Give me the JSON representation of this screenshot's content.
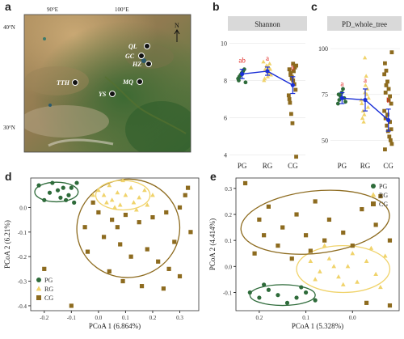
{
  "panels": {
    "a": {
      "letter": "a",
      "lon_labels": [
        "90°E",
        "100°E"
      ],
      "lat_labels": [
        "40°N",
        "30°N"
      ],
      "north": "N",
      "sites": [
        {
          "label": "QL"
        },
        {
          "label": "GC"
        },
        {
          "label": "HZ"
        },
        {
          "label": "TTH"
        },
        {
          "label": "MQ"
        },
        {
          "label": "YS"
        }
      ]
    },
    "b": {
      "letter": "b",
      "strip": "Shannon"
    },
    "c": {
      "letter": "c",
      "strip": "PD_whole_tree"
    },
    "d": {
      "letter": "d"
    },
    "e": {
      "letter": "e"
    }
  },
  "colors": {
    "PG": "#2e6b3a",
    "RG": "#f0d36b",
    "CG": "#8d6b1f",
    "mean": "#1a2fd6",
    "sig": "#e0221d",
    "strip": "#d9d9d9"
  },
  "chart_data": [
    {
      "panel": "b",
      "type": "scatter",
      "title": "Shannon",
      "categories": [
        "PG",
        "RG",
        "CG"
      ],
      "ylim": [
        3.8,
        10.5
      ],
      "yticks": [
        4,
        6,
        8,
        10
      ],
      "means": [
        8.35,
        8.5,
        7.75
      ],
      "errors": [
        0.25,
        0.22,
        0.45
      ],
      "sig_letters": [
        "ab",
        "a",
        "b"
      ],
      "points": {
        "PG": [
          8.1,
          8.2,
          8.3,
          8.4,
          8.5,
          8.6,
          7.9,
          8.0
        ],
        "RG": [
          8.5,
          8.7,
          8.9,
          8.3,
          8.0,
          8.6,
          8.8,
          8.2,
          8.4,
          8.6,
          9.0,
          8.1
        ],
        "CG": [
          8.8,
          8.6,
          8.4,
          8.2,
          8.0,
          7.8,
          7.5,
          7.2,
          6.8,
          6.2,
          5.7,
          8.5,
          8.7,
          3.9,
          7.0,
          8.3,
          8.1,
          8.9
        ]
      }
    },
    {
      "panel": "c",
      "type": "scatter",
      "title": "PD_whole_tree",
      "categories": [
        "PG",
        "RG",
        "CG"
      ],
      "ylim": [
        40,
        108
      ],
      "yticks": [
        50,
        75,
        100
      ],
      "means": [
        73,
        72,
        61
      ],
      "errors": [
        3,
        6,
        6
      ],
      "sig_letters": [
        "a",
        "a",
        "b"
      ],
      "points": {
        "PG": [
          70,
          72,
          74,
          76,
          78,
          73,
          71,
          75
        ],
        "RG": [
          95,
          85,
          78,
          73,
          70,
          66,
          64,
          80,
          75,
          68,
          72,
          62,
          60,
          76
        ],
        "CG": [
          98,
          92,
          88,
          82,
          78,
          74,
          70,
          66,
          62,
          58,
          55,
          52,
          50,
          48,
          45,
          80,
          64,
          72,
          60,
          56,
          86,
          76
        ]
      }
    },
    {
      "panel": "d",
      "type": "scatter",
      "xlabel": "PCoA 1 (6.864%)",
      "ylabel": "PCoA 2 (6.21%)",
      "xlim": [
        -0.25,
        0.37
      ],
      "ylim": [
        -0.42,
        0.12
      ],
      "xticks": [
        -0.2,
        -0.1,
        0.0,
        0.1,
        0.2,
        0.3
      ],
      "xtick_labels": [
        "-0.2",
        "-0.1",
        "0.0",
        "0.1",
        "0.2",
        "0.3"
      ],
      "yticks": [
        0.0,
        -0.1,
        -0.2,
        -0.3,
        -0.4
      ],
      "ytick_labels": [
        "0.0",
        "-0.1",
        "-0.2",
        "-0.3",
        "-0.4"
      ],
      "legend": [
        "PG",
        "RG",
        "CG"
      ],
      "legend_position": "bottom-left",
      "points": {
        "PG": [
          [
            -0.22,
            0.09
          ],
          [
            -0.2,
            0.03
          ],
          [
            -0.18,
            0.06
          ],
          [
            -0.17,
            0.1
          ],
          [
            -0.14,
            0.04
          ],
          [
            -0.13,
            0.08
          ],
          [
            -0.11,
            0.05
          ],
          [
            -0.1,
            0.08
          ],
          [
            -0.09,
            0.02
          ],
          [
            -0.08,
            0.1
          ],
          [
            -0.15,
            0.07
          ],
          [
            -0.12,
            0.03
          ]
        ],
        "RG": [
          [
            0.0,
            0.07
          ],
          [
            0.02,
            0.05
          ],
          [
            0.04,
            0.09
          ],
          [
            0.05,
            0.03
          ],
          [
            0.07,
            0.06
          ],
          [
            0.08,
            0.01
          ],
          [
            0.1,
            0.05
          ],
          [
            0.12,
            0.08
          ],
          [
            0.13,
            0.02
          ],
          [
            0.15,
            0.04
          ],
          [
            0.17,
            0.07
          ],
          [
            0.2,
            0.05
          ],
          [
            0.09,
            0.11
          ],
          [
            0.06,
            0.0
          ],
          [
            0.03,
            0.02
          ],
          [
            -0.02,
            0.05
          ],
          [
            0.14,
            -0.01
          ],
          [
            0.18,
            0.01
          ]
        ],
        "CG": [
          [
            -0.02,
            0.02
          ],
          [
            0.0,
            -0.02
          ],
          [
            0.05,
            -0.05
          ],
          [
            0.1,
            -0.03
          ],
          [
            0.15,
            -0.06
          ],
          [
            0.2,
            -0.04
          ],
          [
            0.25,
            -0.02
          ],
          [
            0.3,
            0.0
          ],
          [
            0.32,
            0.05
          ],
          [
            0.34,
            -0.1
          ],
          [
            -0.05,
            -0.08
          ],
          [
            0.02,
            -0.12
          ],
          [
            0.08,
            -0.15
          ],
          [
            0.12,
            -0.2
          ],
          [
            0.18,
            -0.17
          ],
          [
            0.22,
            -0.22
          ],
          [
            0.26,
            -0.25
          ],
          [
            0.28,
            -0.14
          ],
          [
            0.04,
            -0.26
          ],
          [
            0.09,
            -0.3
          ],
          [
            -0.2,
            -0.25
          ],
          [
            -0.1,
            -0.4
          ],
          [
            0.33,
            0.08
          ],
          [
            0.16,
            -0.32
          ],
          [
            -0.04,
            -0.18
          ],
          [
            0.07,
            -0.08
          ],
          [
            0.24,
            -0.33
          ],
          [
            0.3,
            -0.28
          ]
        ]
      }
    },
    {
      "panel": "e",
      "type": "scatter",
      "xlabel": "PCoA 1 (5.328%)",
      "ylabel": "PCoA 2 (4.414%)",
      "xlim": [
        0.25,
        -0.1
      ],
      "ylim": [
        -0.17,
        0.34
      ],
      "xticks": [
        0.2,
        0.1,
        0.0
      ],
      "xtick_labels": [
        "0.2",
        "0.1",
        "0.0"
      ],
      "yticks": [
        0.3,
        0.2,
        0.1,
        0.0,
        -0.1
      ],
      "ytick_labels": [
        "0.3",
        "0.2",
        "0.1",
        "0.0",
        "-0.1"
      ],
      "legend": [
        "PG",
        "RG",
        "CG"
      ],
      "legend_position": "top-right",
      "points": {
        "PG": [
          [
            0.22,
            -0.1
          ],
          [
            0.2,
            -0.12
          ],
          [
            0.18,
            -0.09
          ],
          [
            0.16,
            -0.11
          ],
          [
            0.14,
            -0.14
          ],
          [
            0.12,
            -0.12
          ],
          [
            0.1,
            -0.1
          ],
          [
            0.08,
            -0.13
          ],
          [
            0.19,
            -0.07
          ],
          [
            0.11,
            -0.08
          ]
        ],
        "RG": [
          [
            0.09,
            0.02
          ],
          [
            0.07,
            -0.02
          ],
          [
            0.05,
            0.03
          ],
          [
            0.03,
            -0.04
          ],
          [
            0.01,
            0.0
          ],
          [
            -0.01,
            -0.06
          ],
          [
            -0.03,
            0.02
          ],
          [
            -0.05,
            -0.03
          ],
          [
            -0.07,
            0.04
          ],
          [
            0.06,
            0.08
          ],
          [
            0.0,
            0.05
          ],
          [
            0.02,
            -0.07
          ],
          [
            -0.06,
            -0.08
          ],
          [
            0.08,
            -0.05
          ],
          [
            -0.04,
            0.07
          ],
          [
            0.04,
            0.0
          ]
        ],
        "CG": [
          [
            0.23,
            0.32
          ],
          [
            0.2,
            0.18
          ],
          [
            0.18,
            0.23
          ],
          [
            0.15,
            0.15
          ],
          [
            0.12,
            0.2
          ],
          [
            0.1,
            0.12
          ],
          [
            0.08,
            0.25
          ],
          [
            0.05,
            0.18
          ],
          [
            0.02,
            0.13
          ],
          [
            -0.02,
            0.22
          ],
          [
            -0.05,
            0.16
          ],
          [
            -0.08,
            0.1
          ],
          [
            0.16,
            0.08
          ],
          [
            0.21,
            0.05
          ],
          [
            0.13,
            0.03
          ],
          [
            0.06,
            0.1
          ],
          [
            -0.06,
            0.27
          ],
          [
            0.0,
            0.08
          ],
          [
            0.09,
            0.06
          ],
          [
            0.19,
            0.12
          ],
          [
            -0.08,
            -0.15
          ],
          [
            -0.03,
            -0.14
          ]
        ]
      }
    }
  ]
}
